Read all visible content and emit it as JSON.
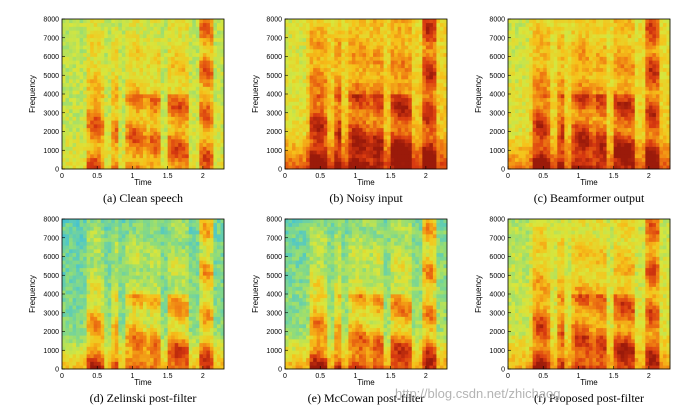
{
  "colors": {
    "colormap": [
      "#2aa7d6",
      "#4ec7c9",
      "#8fdc7a",
      "#d8e63c",
      "#f6c21a",
      "#ef7a12",
      "#d93a10",
      "#9b1a0a"
    ],
    "axis": "#000000",
    "watermark": "#b4b4b4"
  },
  "watermark": "http://blog.csdn.net/zhichaog",
  "chart_data": [
    {
      "type": "heatmap",
      "caption": "(a) Clean speech",
      "xlabel": "Time",
      "ylabel": "Frequency",
      "xlim": [
        0,
        2.3
      ],
      "ylim": [
        0,
        8000
      ],
      "xticks": [
        0,
        0.5,
        1,
        1.5,
        2
      ],
      "yticks": [
        0,
        1000,
        2000,
        3000,
        4000,
        5000,
        6000,
        7000,
        8000
      ],
      "noise_floor": 0.42,
      "hf_floor": 0.38,
      "lf_noise": 0.05,
      "leading_silence": 0.05
    },
    {
      "type": "heatmap",
      "caption": "(b) Noisy input",
      "xlabel": "Time",
      "ylabel": "Frequency",
      "xlim": [
        0,
        2.3
      ],
      "ylim": [
        0,
        8000
      ],
      "xticks": [
        0,
        0.5,
        1,
        1.5,
        2
      ],
      "yticks": [
        0,
        1000,
        2000,
        3000,
        4000,
        5000,
        6000,
        7000,
        8000
      ],
      "noise_floor": 0.58,
      "hf_floor": 0.5,
      "lf_noise": 0.32,
      "leading_silence": 0.35
    },
    {
      "type": "heatmap",
      "caption": "(c) Beamformer output",
      "xlabel": "Time",
      "ylabel": "Frequency",
      "xlim": [
        0,
        2.3
      ],
      "ylim": [
        0,
        8000
      ],
      "xticks": [
        0,
        0.5,
        1,
        1.5,
        2
      ],
      "yticks": [
        0,
        1000,
        2000,
        3000,
        4000,
        5000,
        6000,
        7000,
        8000
      ],
      "noise_floor": 0.55,
      "hf_floor": 0.47,
      "lf_noise": 0.26,
      "leading_silence": 0.3
    },
    {
      "type": "heatmap",
      "caption": "(d) Zelinski post-filter",
      "xlabel": "Time",
      "ylabel": "Frequency",
      "xlim": [
        0,
        2.3
      ],
      "ylim": [
        0,
        8000
      ],
      "xticks": [
        0,
        0.5,
        1,
        1.5,
        2
      ],
      "yticks": [
        0,
        1000,
        2000,
        3000,
        4000,
        5000,
        6000,
        7000,
        8000
      ],
      "noise_floor": 0.32,
      "hf_floor": 0.22,
      "lf_noise": 0.3,
      "leading_silence": 0.1
    },
    {
      "type": "heatmap",
      "caption": "(e) McCowan post-filter",
      "xlabel": "Time",
      "ylabel": "Frequency",
      "xlim": [
        0,
        2.3
      ],
      "ylim": [
        0,
        8000
      ],
      "xticks": [
        0,
        0.5,
        1,
        1.5,
        2
      ],
      "yticks": [
        0,
        1000,
        2000,
        3000,
        4000,
        5000,
        6000,
        7000,
        8000
      ],
      "noise_floor": 0.36,
      "hf_floor": 0.25,
      "lf_noise": 0.32,
      "leading_silence": 0.15
    },
    {
      "type": "heatmap",
      "caption": "(f) Proposed post-filter",
      "xlabel": "Time",
      "ylabel": "Frequency",
      "xlim": [
        0,
        2.3
      ],
      "ylim": [
        0,
        8000
      ],
      "xticks": [
        0,
        0.5,
        1,
        1.5,
        2
      ],
      "yticks": [
        0,
        1000,
        2000,
        3000,
        4000,
        5000,
        6000,
        7000,
        8000
      ],
      "noise_floor": 0.48,
      "hf_floor": 0.4,
      "lf_noise": 0.2,
      "leading_silence": 0.2
    }
  ]
}
